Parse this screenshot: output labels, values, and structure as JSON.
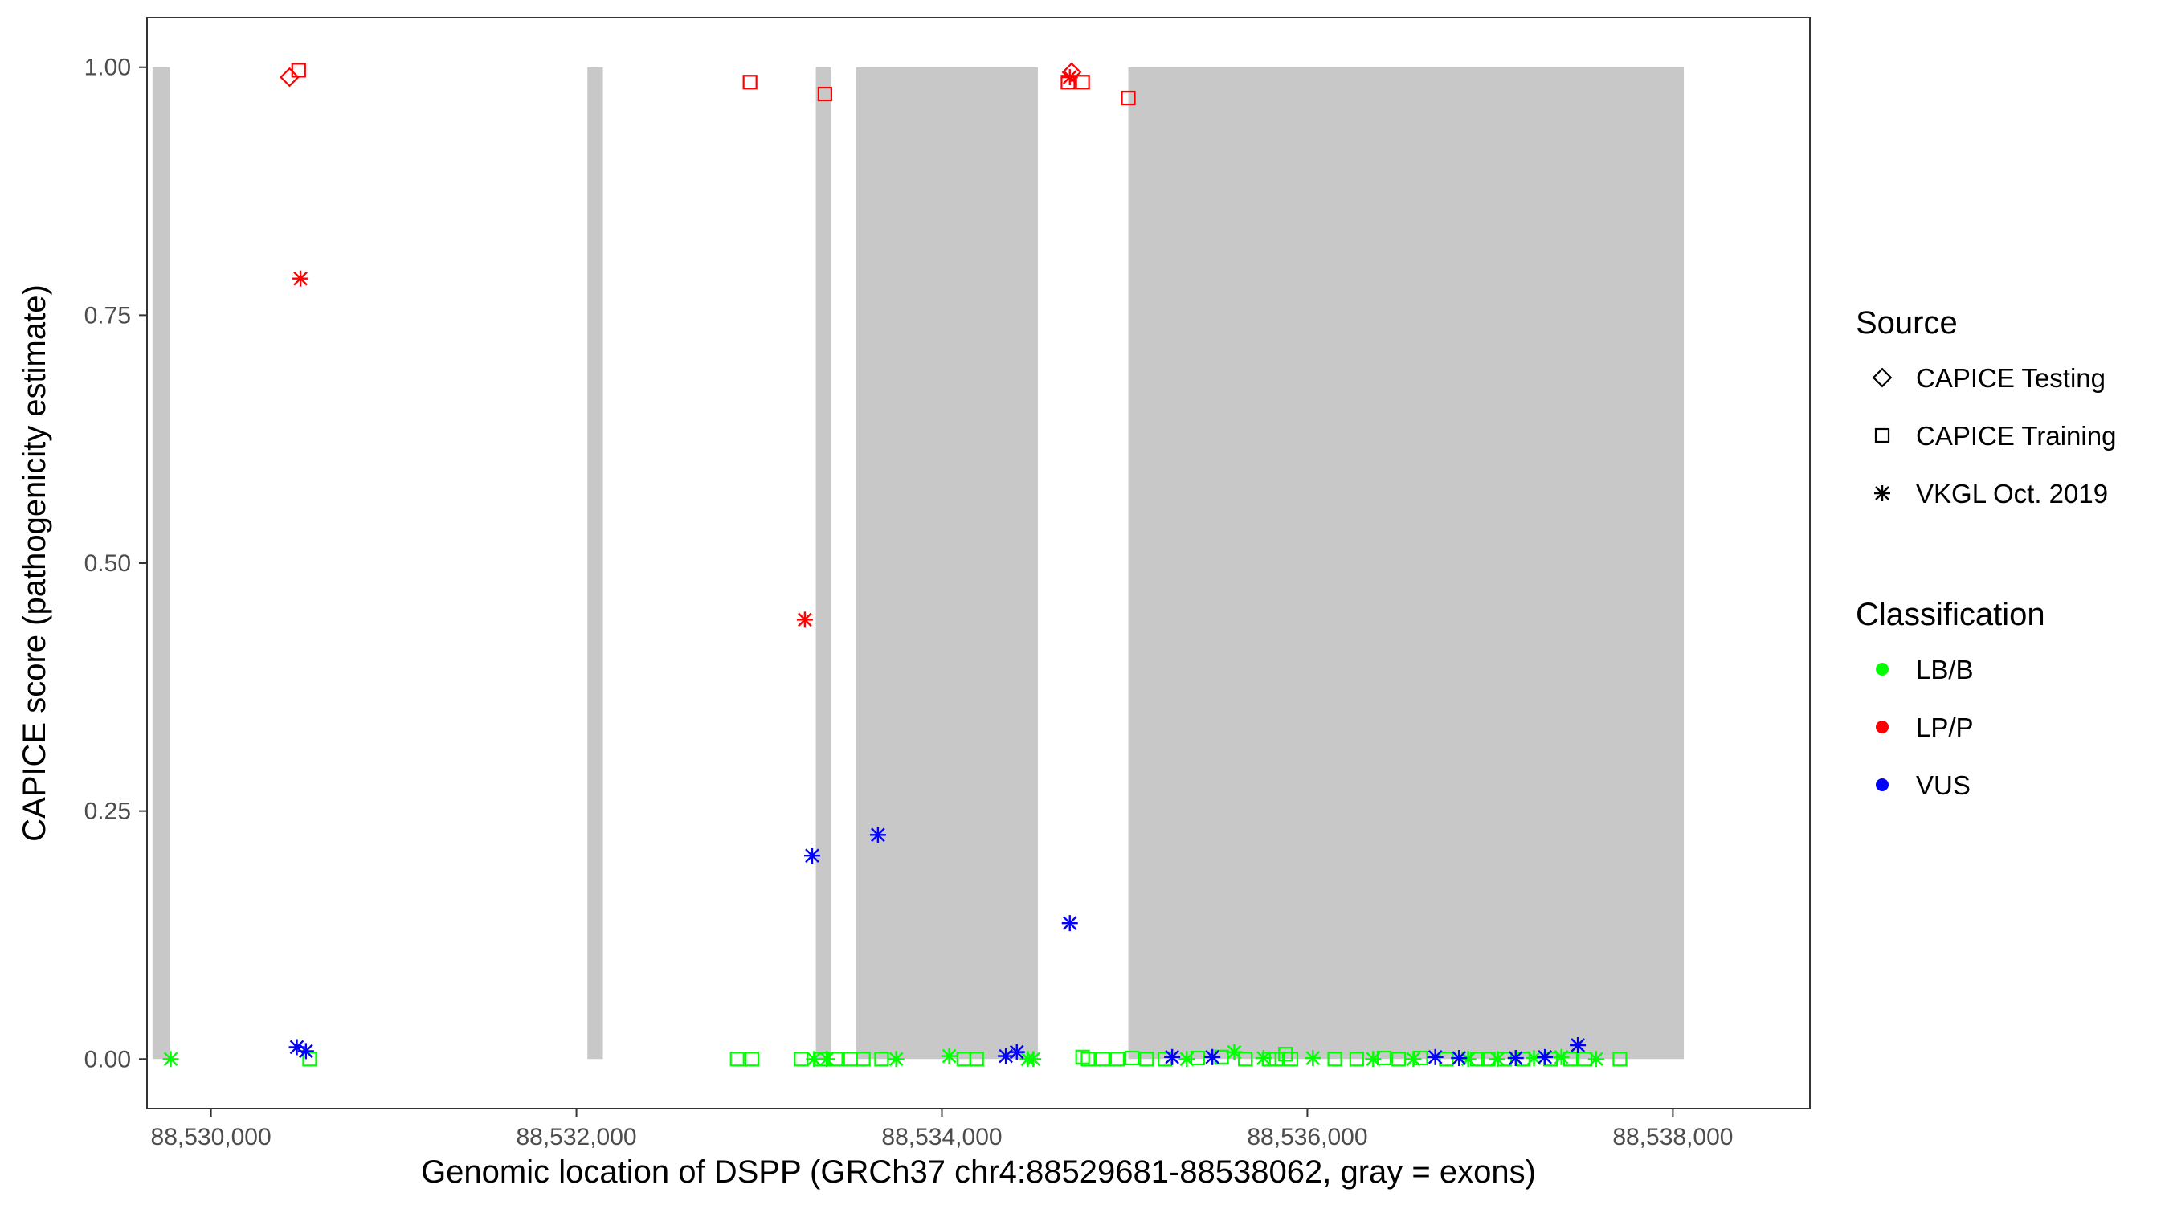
{
  "chart_data": {
    "type": "scatter",
    "xlabel": "Genomic location of DSPP (GRCh37 chr4:88529681-88538062, gray = exons)",
    "ylabel": "CAPICE score (pathogenicity estimate)",
    "xlim": [
      88529650,
      88538750
    ],
    "ylim": [
      -0.05,
      1.05
    ],
    "x_ticks": [
      88530000,
      88532000,
      88534000,
      88536000,
      88538000
    ],
    "x_tick_labels": [
      "88,530,000",
      "88,532,000",
      "88,534,000",
      "88,536,000",
      "88,538,000"
    ],
    "y_ticks": [
      0,
      0.25,
      0.5,
      0.75,
      1.0
    ],
    "y_tick_labels": [
      "0.00",
      "0.25",
      "0.50",
      "0.75",
      "1.00"
    ],
    "grid": false,
    "exons": [
      [
        88529680,
        88529775
      ],
      [
        88532060,
        88532145
      ],
      [
        88533310,
        88533395
      ],
      [
        88533530,
        88534525
      ],
      [
        88535020,
        88538060
      ]
    ],
    "legend": {
      "position": "right",
      "source": {
        "title": "Source",
        "entries": [
          {
            "label": "CAPICE Testing",
            "shape": "diamond"
          },
          {
            "label": "CAPICE Training",
            "shape": "square"
          },
          {
            "label": "VKGL Oct. 2019",
            "shape": "asterisk"
          }
        ]
      },
      "classification": {
        "title": "Classification",
        "entries": [
          {
            "label": "LB/B",
            "color": "#00ff00"
          },
          {
            "label": "LP/P",
            "color": "#ff0000"
          },
          {
            "label": "VUS",
            "color": "#0000ff"
          }
        ]
      }
    },
    "colors": {
      "LB/B": "#00ff00",
      "LP/P": "#ff0000",
      "VUS": "#0000ff"
    },
    "points": [
      {
        "x": 88530430,
        "y": 0.99,
        "source": "CAPICE Testing",
        "class": "LP/P"
      },
      {
        "x": 88530480,
        "y": 0.997,
        "source": "CAPICE Training",
        "class": "LP/P"
      },
      {
        "x": 88530490,
        "y": 0.787,
        "source": "VKGL Oct. 2019",
        "class": "LP/P"
      },
      {
        "x": 88532950,
        "y": 0.985,
        "source": "CAPICE Training",
        "class": "LP/P"
      },
      {
        "x": 88533360,
        "y": 0.973,
        "source": "CAPICE Training",
        "class": "LP/P"
      },
      {
        "x": 88533250,
        "y": 0.443,
        "source": "VKGL Oct. 2019",
        "class": "LP/P"
      },
      {
        "x": 88534690,
        "y": 0.985,
        "source": "CAPICE Training",
        "class": "LP/P"
      },
      {
        "x": 88534700,
        "y": 0.99,
        "source": "VKGL Oct. 2019",
        "class": "LP/P"
      },
      {
        "x": 88534710,
        "y": 0.995,
        "source": "CAPICE Testing",
        "class": "LP/P"
      },
      {
        "x": 88534770,
        "y": 0.985,
        "source": "CAPICE Training",
        "class": "LP/P"
      },
      {
        "x": 88535020,
        "y": 0.969,
        "source": "CAPICE Training",
        "class": "LP/P"
      },
      {
        "x": 88530470,
        "y": 0.012,
        "source": "VKGL Oct. 2019",
        "class": "VUS"
      },
      {
        "x": 88530520,
        "y": 0.008,
        "source": "VKGL Oct. 2019",
        "class": "VUS"
      },
      {
        "x": 88533290,
        "y": 0.205,
        "source": "VKGL Oct. 2019",
        "class": "VUS"
      },
      {
        "x": 88533650,
        "y": 0.226,
        "source": "VKGL Oct. 2019",
        "class": "VUS"
      },
      {
        "x": 88534700,
        "y": 0.137,
        "source": "VKGL Oct. 2019",
        "class": "VUS"
      },
      {
        "x": 88534350,
        "y": 0.003,
        "source": "VKGL Oct. 2019",
        "class": "VUS"
      },
      {
        "x": 88534410,
        "y": 0.007,
        "source": "VKGL Oct. 2019",
        "class": "VUS"
      },
      {
        "x": 88535260,
        "y": 0.002,
        "source": "VKGL Oct. 2019",
        "class": "VUS"
      },
      {
        "x": 88535480,
        "y": 0.002,
        "source": "VKGL Oct. 2019",
        "class": "VUS"
      },
      {
        "x": 88536700,
        "y": 0.002,
        "source": "VKGL Oct. 2019",
        "class": "VUS"
      },
      {
        "x": 88536830,
        "y": 0.001,
        "source": "VKGL Oct. 2019",
        "class": "VUS"
      },
      {
        "x": 88537140,
        "y": 0.001,
        "source": "VKGL Oct. 2019",
        "class": "VUS"
      },
      {
        "x": 88537300,
        "y": 0.002,
        "source": "VKGL Oct. 2019",
        "class": "VUS"
      },
      {
        "x": 88537480,
        "y": 0.014,
        "source": "VKGL Oct. 2019",
        "class": "VUS"
      },
      {
        "x": 88529780,
        "y": 0.0,
        "source": "VKGL Oct. 2019",
        "class": "LB/B"
      },
      {
        "x": 88530540,
        "y": 0.0,
        "source": "CAPICE Training",
        "class": "LB/B"
      },
      {
        "x": 88532880,
        "y": 0.0,
        "source": "CAPICE Training",
        "class": "LB/B"
      },
      {
        "x": 88532960,
        "y": 0.0,
        "source": "CAPICE Training",
        "class": "LB/B"
      },
      {
        "x": 88533230,
        "y": 0.0,
        "source": "CAPICE Training",
        "class": "LB/B"
      },
      {
        "x": 88533300,
        "y": 0.0,
        "source": "VKGL Oct. 2019",
        "class": "LB/B"
      },
      {
        "x": 88533340,
        "y": 0.0,
        "source": "CAPICE Training",
        "class": "LB/B"
      },
      {
        "x": 88533370,
        "y": 0.0,
        "source": "VKGL Oct. 2019",
        "class": "LB/B"
      },
      {
        "x": 88533420,
        "y": 0.0,
        "source": "CAPICE Training",
        "class": "LB/B"
      },
      {
        "x": 88533500,
        "y": 0.0,
        "source": "CAPICE Training",
        "class": "LB/B"
      },
      {
        "x": 88533570,
        "y": 0.0,
        "source": "CAPICE Training",
        "class": "LB/B"
      },
      {
        "x": 88533670,
        "y": 0.0,
        "source": "CAPICE Training",
        "class": "LB/B"
      },
      {
        "x": 88533750,
        "y": 0.0,
        "source": "VKGL Oct. 2019",
        "class": "LB/B"
      },
      {
        "x": 88534040,
        "y": 0.003,
        "source": "VKGL Oct. 2019",
        "class": "LB/B"
      },
      {
        "x": 88534120,
        "y": 0.0,
        "source": "CAPICE Training",
        "class": "LB/B"
      },
      {
        "x": 88534190,
        "y": 0.0,
        "source": "CAPICE Training",
        "class": "LB/B"
      },
      {
        "x": 88534470,
        "y": 0.0,
        "source": "VKGL Oct. 2019",
        "class": "LB/B"
      },
      {
        "x": 88534500,
        "y": 0.0,
        "source": "VKGL Oct. 2019",
        "class": "LB/B"
      },
      {
        "x": 88534770,
        "y": 0.002,
        "source": "CAPICE Training",
        "class": "LB/B"
      },
      {
        "x": 88534800,
        "y": 0.0,
        "source": "CAPICE Training",
        "class": "LB/B"
      },
      {
        "x": 88534880,
        "y": 0.0,
        "source": "CAPICE Training",
        "class": "LB/B"
      },
      {
        "x": 88534960,
        "y": 0.0,
        "source": "CAPICE Training",
        "class": "LB/B"
      },
      {
        "x": 88535040,
        "y": 0.001,
        "source": "CAPICE Training",
        "class": "LB/B"
      },
      {
        "x": 88535120,
        "y": 0.0,
        "source": "CAPICE Training",
        "class": "LB/B"
      },
      {
        "x": 88535220,
        "y": 0.0,
        "source": "CAPICE Training",
        "class": "LB/B"
      },
      {
        "x": 88535340,
        "y": 0.0,
        "source": "VKGL Oct. 2019",
        "class": "LB/B"
      },
      {
        "x": 88535400,
        "y": 0.001,
        "source": "CAPICE Training",
        "class": "LB/B"
      },
      {
        "x": 88535530,
        "y": 0.002,
        "source": "CAPICE Training",
        "class": "LB/B"
      },
      {
        "x": 88535600,
        "y": 0.007,
        "source": "VKGL Oct. 2019",
        "class": "LB/B"
      },
      {
        "x": 88535660,
        "y": 0.0,
        "source": "CAPICE Training",
        "class": "LB/B"
      },
      {
        "x": 88535760,
        "y": 0.001,
        "source": "VKGL Oct. 2019",
        "class": "LB/B"
      },
      {
        "x": 88535790,
        "y": 0.0,
        "source": "CAPICE Training",
        "class": "LB/B"
      },
      {
        "x": 88535830,
        "y": 0.0,
        "source": "CAPICE Training",
        "class": "LB/B"
      },
      {
        "x": 88535880,
        "y": 0.005,
        "source": "CAPICE Training",
        "class": "LB/B"
      },
      {
        "x": 88535910,
        "y": 0.0,
        "source": "CAPICE Training",
        "class": "LB/B"
      },
      {
        "x": 88536030,
        "y": 0.001,
        "source": "VKGL Oct. 2019",
        "class": "LB/B"
      },
      {
        "x": 88536150,
        "y": 0.0,
        "source": "CAPICE Training",
        "class": "LB/B"
      },
      {
        "x": 88536270,
        "y": 0.0,
        "source": "CAPICE Training",
        "class": "LB/B"
      },
      {
        "x": 88536360,
        "y": 0.0,
        "source": "VKGL Oct. 2019",
        "class": "LB/B"
      },
      {
        "x": 88536420,
        "y": 0.001,
        "source": "CAPICE Training",
        "class": "LB/B"
      },
      {
        "x": 88536500,
        "y": 0.0,
        "source": "CAPICE Training",
        "class": "LB/B"
      },
      {
        "x": 88536580,
        "y": 0.0,
        "source": "VKGL Oct. 2019",
        "class": "LB/B"
      },
      {
        "x": 88536620,
        "y": 0.001,
        "source": "CAPICE Training",
        "class": "LB/B"
      },
      {
        "x": 88536760,
        "y": 0.0,
        "source": "CAPICE Training",
        "class": "LB/B"
      },
      {
        "x": 88536880,
        "y": 0.0,
        "source": "VKGL Oct. 2019",
        "class": "LB/B"
      },
      {
        "x": 88536930,
        "y": 0.0,
        "source": "CAPICE Training",
        "class": "LB/B"
      },
      {
        "x": 88536990,
        "y": 0.0,
        "source": "CAPICE Training",
        "class": "LB/B"
      },
      {
        "x": 88537040,
        "y": 0.0,
        "source": "VKGL Oct. 2019",
        "class": "LB/B"
      },
      {
        "x": 88537080,
        "y": 0.0,
        "source": "CAPICE Training",
        "class": "LB/B"
      },
      {
        "x": 88537180,
        "y": 0.0,
        "source": "CAPICE Training",
        "class": "LB/B"
      },
      {
        "x": 88537240,
        "y": 0.001,
        "source": "VKGL Oct. 2019",
        "class": "LB/B"
      },
      {
        "x": 88537330,
        "y": 0.0,
        "source": "CAPICE Training",
        "class": "LB/B"
      },
      {
        "x": 88537390,
        "y": 0.002,
        "source": "VKGL Oct. 2019",
        "class": "LB/B"
      },
      {
        "x": 88537440,
        "y": 0.0,
        "source": "CAPICE Training",
        "class": "LB/B"
      },
      {
        "x": 88537520,
        "y": 0.0,
        "source": "CAPICE Training",
        "class": "LB/B"
      },
      {
        "x": 88537580,
        "y": 0.0,
        "source": "VKGL Oct. 2019",
        "class": "LB/B"
      },
      {
        "x": 88537710,
        "y": 0.0,
        "source": "CAPICE Training",
        "class": "LB/B"
      }
    ]
  }
}
